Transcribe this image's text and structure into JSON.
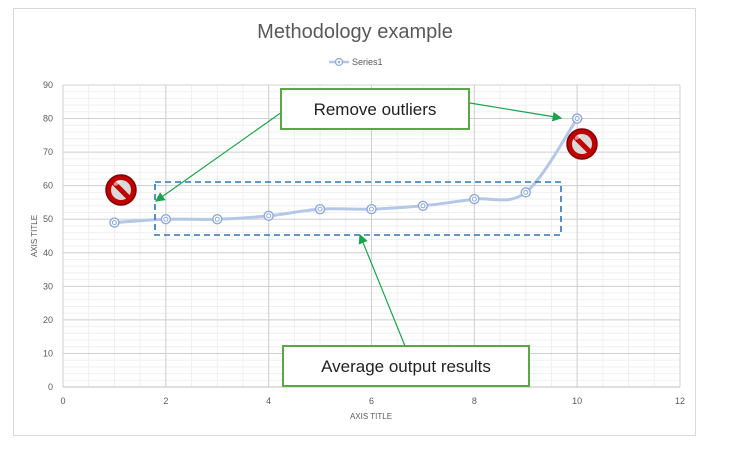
{
  "chart_data": {
    "type": "scatter",
    "title": "Methodology example",
    "xlabel": "AXIS TITLE",
    "ylabel": "AXIS TITLE",
    "xlim": [
      0,
      12
    ],
    "ylim": [
      0,
      90
    ],
    "x_ticks": [
      0,
      2,
      4,
      6,
      8,
      10,
      12
    ],
    "y_ticks": [
      0,
      10,
      20,
      30,
      40,
      50,
      60,
      70,
      80,
      90
    ],
    "grid": true,
    "legend_position": "top",
    "series": [
      {
        "name": "Series1",
        "x": [
          1,
          2,
          3,
          4,
          5,
          6,
          7,
          8,
          9,
          10
        ],
        "y": [
          49,
          50,
          50,
          51,
          53,
          53,
          54,
          56,
          58,
          80
        ],
        "color": "#8ea9db"
      }
    ],
    "annotations": {
      "remove_outliers": "Remove outliers",
      "average_output": "Average output results"
    }
  }
}
